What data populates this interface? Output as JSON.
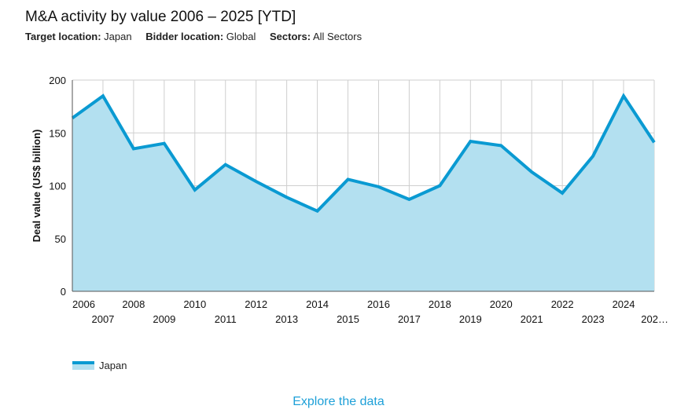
{
  "title": "M&A activity by value 2006 – 2025 [YTD]",
  "filters": [
    {
      "label": "Target location:",
      "value": "Japan"
    },
    {
      "label": "Bidder location:",
      "value": "Global"
    },
    {
      "label": "Sectors:",
      "value": "All Sectors"
    }
  ],
  "explore_label": "Explore the data",
  "colors": {
    "line": "#0a9ad2",
    "area": "#b3e0f0",
    "grid": "#cfcfcf",
    "link": "#1ea0d8"
  },
  "chart_data": {
    "type": "area",
    "xlabel": "",
    "ylabel": "Deal value (US$ billion)",
    "ylim": [
      0,
      200
    ],
    "yticks": [
      0,
      50,
      100,
      150,
      200
    ],
    "x_tick_labels": [
      "2006",
      "2007",
      "2008",
      "2009",
      "2010",
      "2011",
      "2012",
      "2013",
      "2014",
      "2015",
      "2016",
      "2017",
      "2018",
      "2019",
      "2020",
      "2021",
      "2022",
      "2023",
      "2024",
      "202…"
    ],
    "x": [
      2006,
      2007,
      2008,
      2009,
      2010,
      2011,
      2012,
      2013,
      2014,
      2015,
      2016,
      2017,
      2018,
      2019,
      2020,
      2021,
      2022,
      2023,
      2024,
      2025
    ],
    "grid": true,
    "legend_position": "bottom-left",
    "series": [
      {
        "name": "Japan",
        "values": [
          164,
          185,
          135,
          140,
          96,
          120,
          104,
          89,
          76,
          106,
          99,
          87,
          100,
          142,
          138,
          113,
          93,
          128,
          185,
          141
        ]
      }
    ]
  }
}
